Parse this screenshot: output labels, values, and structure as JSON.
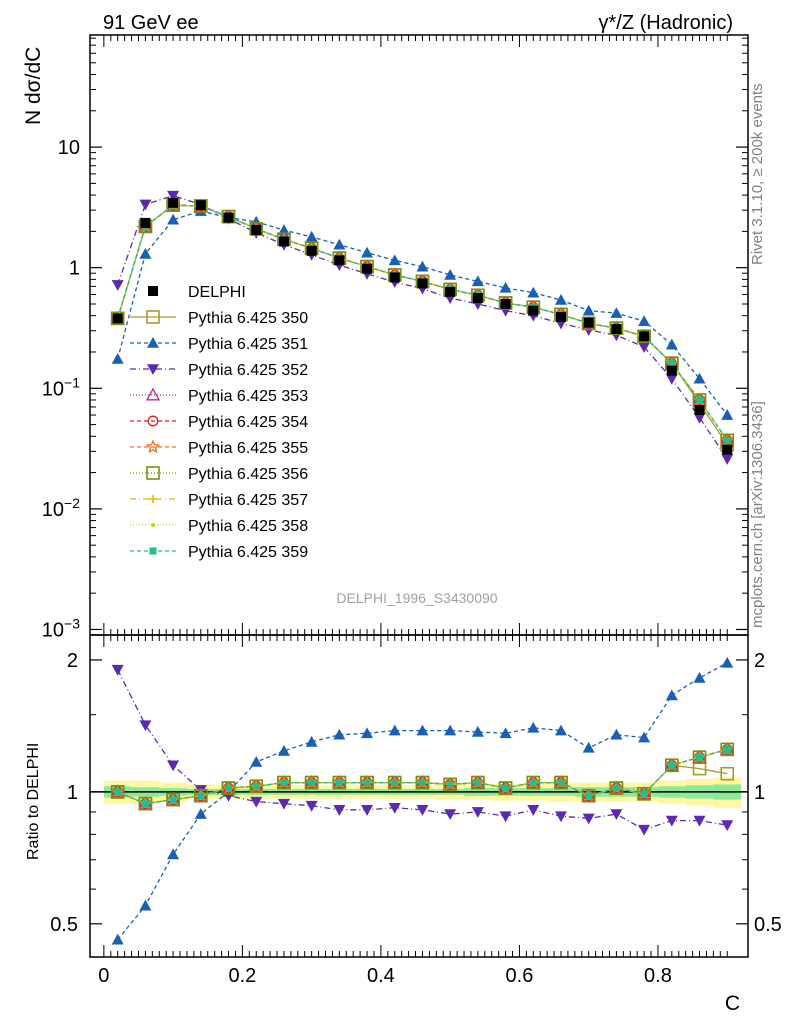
{
  "header": {
    "left": "91 GeV ee",
    "right": "γ*/Z (Hadronic)"
  },
  "side_text": {
    "rivet": "Rivet 3.1.10, ≥ 200k events",
    "mcplots": "mcplots.cern.ch [arXiv:1306.3436]"
  },
  "watermark": "DELPHI_1996_S3430090",
  "chart_data": [
    {
      "type": "line",
      "ylabel": "N dσ/dC",
      "xlabel": "C",
      "log_y": true,
      "xlim": [
        -0.02,
        0.93
      ],
      "ylim": [
        0.0009,
        85
      ],
      "ytick_labels": [
        "10−3",
        "10−2",
        "10−1",
        "1",
        "10"
      ],
      "legend_position": "center-left",
      "x": [
        0.02,
        0.06,
        0.1,
        0.14,
        0.18,
        0.22,
        0.26,
        0.3,
        0.34,
        0.38,
        0.42,
        0.46,
        0.5,
        0.54,
        0.58,
        0.62,
        0.66,
        0.7,
        0.74,
        0.78,
        0.82,
        0.86,
        0.9
      ],
      "series": [
        {
          "name": "DELPHI",
          "color": "#000000",
          "marker": "square-filled",
          "dash": "none",
          "values": [
            0.38,
            2.35,
            3.45,
            3.3,
            2.6,
            2.05,
            1.65,
            1.38,
            1.15,
            0.98,
            0.83,
            0.74,
            0.63,
            0.56,
            0.5,
            0.44,
            0.39,
            0.35,
            0.31,
            0.27,
            0.14,
            0.066,
            0.031
          ]
        },
        {
          "name": "Pythia 6.425 350",
          "color": "#a89b2e",
          "marker": "square-open",
          "dash": "none",
          "values": [
            0.38,
            2.2,
            3.3,
            3.25,
            2.65,
            2.1,
            1.72,
            1.45,
            1.2,
            1.02,
            0.87,
            0.77,
            0.66,
            0.59,
            0.51,
            0.47,
            0.41,
            0.345,
            0.315,
            0.27,
            0.162,
            0.075,
            0.034
          ]
        },
        {
          "name": "Pythia 6.425 351",
          "color": "#1a5fb4",
          "marker": "triangle-up",
          "dash": "4,3",
          "values": [
            0.175,
            1.3,
            2.5,
            2.95,
            2.6,
            2.4,
            2.05,
            1.8,
            1.55,
            1.33,
            1.15,
            1.02,
            0.87,
            0.77,
            0.68,
            0.62,
            0.54,
            0.44,
            0.42,
            0.36,
            0.23,
            0.12,
            0.06
          ]
        },
        {
          "name": "Pythia 6.425 352",
          "color": "#5b2ab5",
          "marker": "triangle-down",
          "dash": "6,3,1,3",
          "values": [
            0.72,
            3.35,
            3.95,
            3.35,
            2.55,
            1.95,
            1.55,
            1.28,
            1.05,
            0.89,
            0.76,
            0.67,
            0.56,
            0.5,
            0.44,
            0.4,
            0.345,
            0.305,
            0.275,
            0.22,
            0.12,
            0.057,
            0.026
          ]
        },
        {
          "name": "Pythia 6.425 353",
          "color": "#c0249b",
          "marker": "triangle-open",
          "dash": "1,2",
          "values": [
            0.38,
            2.2,
            3.3,
            3.25,
            2.65,
            2.1,
            1.72,
            1.45,
            1.2,
            1.02,
            0.87,
            0.77,
            0.66,
            0.59,
            0.51,
            0.47,
            0.41,
            0.345,
            0.315,
            0.27,
            0.16,
            0.08,
            0.037
          ]
        },
        {
          "name": "Pythia 6.425 354",
          "color": "#e01b24",
          "marker": "circle-open",
          "dash": "4,3",
          "values": [
            0.38,
            2.2,
            3.3,
            3.25,
            2.65,
            2.1,
            1.72,
            1.45,
            1.2,
            1.02,
            0.87,
            0.77,
            0.66,
            0.59,
            0.51,
            0.47,
            0.41,
            0.345,
            0.315,
            0.27,
            0.16,
            0.08,
            0.037
          ]
        },
        {
          "name": "Pythia 6.425 355",
          "color": "#f66d1b",
          "marker": "star-open",
          "dash": "4,3",
          "values": [
            0.38,
            2.2,
            3.3,
            3.25,
            2.65,
            2.1,
            1.72,
            1.45,
            1.2,
            1.02,
            0.87,
            0.77,
            0.66,
            0.59,
            0.51,
            0.47,
            0.41,
            0.345,
            0.315,
            0.27,
            0.16,
            0.08,
            0.037
          ]
        },
        {
          "name": "Pythia 6.425 356",
          "color": "#7a8f10",
          "marker": "square-open",
          "dash": "1,2",
          "values": [
            0.38,
            2.2,
            3.3,
            3.25,
            2.65,
            2.1,
            1.72,
            1.45,
            1.2,
            1.02,
            0.87,
            0.77,
            0.66,
            0.59,
            0.51,
            0.47,
            0.41,
            0.345,
            0.315,
            0.27,
            0.16,
            0.08,
            0.037
          ]
        },
        {
          "name": "Pythia 6.425 357",
          "color": "#e6b800",
          "marker": "cross",
          "dash": "6,3,1,3",
          "values": [
            0.38,
            2.2,
            3.3,
            3.25,
            2.65,
            2.1,
            1.72,
            1.45,
            1.2,
            1.02,
            0.87,
            0.77,
            0.66,
            0.59,
            0.51,
            0.47,
            0.41,
            0.345,
            0.315,
            0.27,
            0.16,
            0.08,
            0.037
          ]
        },
        {
          "name": "Pythia 6.425 358",
          "color": "#c8d400",
          "marker": "dot",
          "dash": "1,2",
          "values": [
            0.38,
            2.2,
            3.3,
            3.25,
            2.65,
            2.1,
            1.72,
            1.45,
            1.2,
            1.02,
            0.87,
            0.77,
            0.66,
            0.59,
            0.51,
            0.47,
            0.41,
            0.345,
            0.315,
            0.27,
            0.16,
            0.08,
            0.037
          ]
        },
        {
          "name": "Pythia 6.425 359",
          "color": "#1fbf8f",
          "marker": "square-filled-small",
          "dash": "4,3",
          "values": [
            0.38,
            2.2,
            3.3,
            3.25,
            2.65,
            2.1,
            1.72,
            1.45,
            1.2,
            1.02,
            0.87,
            0.77,
            0.66,
            0.59,
            0.51,
            0.47,
            0.41,
            0.345,
            0.315,
            0.27,
            0.16,
            0.08,
            0.037
          ]
        }
      ]
    },
    {
      "type": "line",
      "ylabel": "Ratio to DELPHI",
      "xlabel": "C",
      "xlim": [
        -0.02,
        0.93
      ],
      "ylim": [
        0.42,
        2.28
      ],
      "xtick_labels": [
        "0",
        "0.2",
        "0.4",
        "0.6",
        "0.8"
      ],
      "ytick_labels": [
        "0.5",
        "1",
        "2"
      ],
      "reference_line": 1,
      "uncertainty_band": {
        "outer_color": "#fff8a0",
        "inner_color": "#8ee89a",
        "outer_half_width": [
          0.06,
          0.06,
          0.05,
          0.04,
          0.035,
          0.035,
          0.035,
          0.035,
          0.035,
          0.035,
          0.035,
          0.035,
          0.04,
          0.04,
          0.045,
          0.045,
          0.05,
          0.05,
          0.05,
          0.05,
          0.06,
          0.07,
          0.08
        ],
        "inner_half_width": [
          0.03,
          0.025,
          0.02,
          0.015,
          0.015,
          0.015,
          0.015,
          0.015,
          0.015,
          0.015,
          0.015,
          0.015,
          0.015,
          0.02,
          0.02,
          0.02,
          0.02,
          0.025,
          0.025,
          0.025,
          0.03,
          0.035,
          0.04
        ]
      },
      "series": [
        {
          "name": "Pythia 6.425 350",
          "values": [
            1.0,
            0.94,
            0.96,
            0.98,
            1.02,
            1.03,
            1.05,
            1.05,
            1.05,
            1.05,
            1.05,
            1.05,
            1.04,
            1.05,
            1.02,
            1.05,
            1.05,
            0.98,
            1.02,
            0.99,
            1.15,
            1.13,
            1.1
          ]
        },
        {
          "name": "Pythia 6.425 351",
          "values": [
            0.46,
            0.55,
            0.72,
            0.89,
            1.0,
            1.17,
            1.24,
            1.3,
            1.35,
            1.36,
            1.38,
            1.38,
            1.38,
            1.37,
            1.36,
            1.4,
            1.38,
            1.26,
            1.35,
            1.33,
            1.66,
            1.82,
            1.97
          ]
        },
        {
          "name": "Pythia 6.425 352",
          "values": [
            1.9,
            1.42,
            1.15,
            1.01,
            0.98,
            0.95,
            0.94,
            0.93,
            0.91,
            0.91,
            0.92,
            0.91,
            0.89,
            0.9,
            0.88,
            0.91,
            0.88,
            0.87,
            0.89,
            0.82,
            0.86,
            0.86,
            0.84
          ]
        },
        {
          "name": "Pythia 6.425 353",
          "values": [
            1.0,
            0.94,
            0.96,
            0.98,
            1.02,
            1.03,
            1.05,
            1.05,
            1.05,
            1.05,
            1.05,
            1.05,
            1.04,
            1.05,
            1.02,
            1.05,
            1.05,
            0.98,
            1.02,
            0.99,
            1.15,
            1.2,
            1.25
          ]
        },
        {
          "name": "Pythia 6.425 354",
          "values": [
            1.0,
            0.94,
            0.96,
            0.98,
            1.02,
            1.03,
            1.05,
            1.05,
            1.05,
            1.05,
            1.05,
            1.05,
            1.04,
            1.05,
            1.02,
            1.05,
            1.05,
            0.98,
            1.02,
            0.99,
            1.15,
            1.2,
            1.25
          ]
        },
        {
          "name": "Pythia 6.425 355",
          "values": [
            1.0,
            0.94,
            0.96,
            0.98,
            1.02,
            1.03,
            1.05,
            1.05,
            1.05,
            1.05,
            1.05,
            1.05,
            1.04,
            1.05,
            1.02,
            1.05,
            1.05,
            0.98,
            1.02,
            0.99,
            1.15,
            1.2,
            1.25
          ]
        },
        {
          "name": "Pythia 6.425 356",
          "values": [
            1.0,
            0.94,
            0.96,
            0.98,
            1.02,
            1.03,
            1.05,
            1.05,
            1.05,
            1.05,
            1.05,
            1.05,
            1.04,
            1.05,
            1.02,
            1.05,
            1.05,
            0.98,
            1.02,
            0.99,
            1.15,
            1.2,
            1.25
          ]
        },
        {
          "name": "Pythia 6.425 357",
          "values": [
            1.0,
            0.94,
            0.96,
            0.98,
            1.02,
            1.03,
            1.05,
            1.05,
            1.05,
            1.05,
            1.05,
            1.05,
            1.04,
            1.05,
            1.02,
            1.05,
            1.05,
            0.98,
            1.02,
            0.99,
            1.15,
            1.2,
            1.25
          ]
        },
        {
          "name": "Pythia 6.425 358",
          "values": [
            1.0,
            0.94,
            0.96,
            0.98,
            1.02,
            1.03,
            1.05,
            1.05,
            1.05,
            1.05,
            1.05,
            1.05,
            1.04,
            1.05,
            1.02,
            1.05,
            1.05,
            0.98,
            1.02,
            0.99,
            1.15,
            1.2,
            1.25
          ]
        },
        {
          "name": "Pythia 6.425 359",
          "values": [
            1.0,
            0.94,
            0.96,
            0.98,
            1.02,
            1.03,
            1.05,
            1.05,
            1.05,
            1.05,
            1.05,
            1.05,
            1.04,
            1.05,
            1.02,
            1.05,
            1.05,
            0.98,
            1.02,
            0.99,
            1.15,
            1.2,
            1.25
          ]
        }
      ]
    }
  ]
}
